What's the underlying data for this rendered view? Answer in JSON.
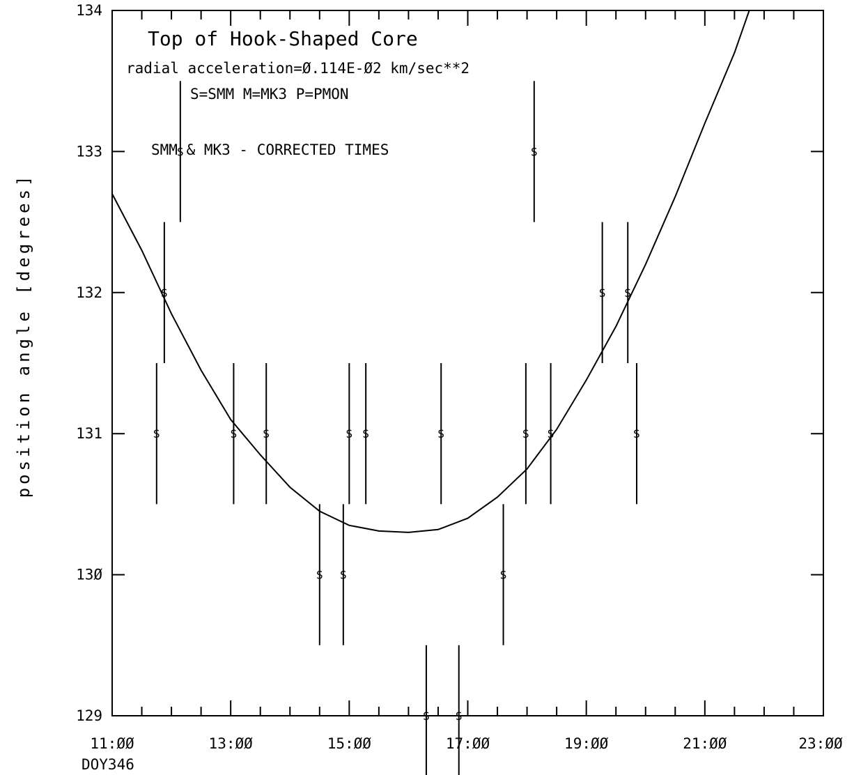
{
  "chart_data": {
    "type": "scatter",
    "title": "Top of Hook-Shaped Core",
    "annotations": [
      "radial acceleration=Ø.114E-Ø2  km/sec**2",
      "S=SMM  M=MK3  P=PMON",
      "SMM & MK3 - CORRECTED TIMES"
    ],
    "xlabel_sub": "DOY346",
    "ylabel": "position angle [degrees]",
    "x_unit": "hour of day",
    "xlim": [
      11.0,
      23.0
    ],
    "ylim": [
      129,
      134
    ],
    "x_ticks": [
      {
        "v": 11,
        "label": "11:ØØ"
      },
      {
        "v": 13,
        "label": "13:ØØ"
      },
      {
        "v": 15,
        "label": "15:ØØ"
      },
      {
        "v": 17,
        "label": "17:ØØ"
      },
      {
        "v": 19,
        "label": "19:ØØ"
      },
      {
        "v": 21,
        "label": "21:ØØ"
      },
      {
        "v": 23,
        "label": "23:ØØ"
      }
    ],
    "y_ticks": [
      {
        "v": 129,
        "label": "129"
      },
      {
        "v": 130,
        "label": "13Ø"
      },
      {
        "v": 131,
        "label": "131"
      },
      {
        "v": 132,
        "label": "132"
      },
      {
        "v": 133,
        "label": "133"
      },
      {
        "v": 134,
        "label": "134"
      }
    ],
    "grid": false,
    "series": [
      {
        "symbol": "S",
        "points": [
          {
            "x": 11.75,
            "y": 131,
            "err": 0.5
          },
          {
            "x": 11.88,
            "y": 132,
            "err": 0.5
          },
          {
            "x": 12.15,
            "y": 133,
            "err": 0.5
          },
          {
            "x": 13.05,
            "y": 131,
            "err": 0.5
          },
          {
            "x": 13.6,
            "y": 131,
            "err": 0.5
          },
          {
            "x": 14.5,
            "y": 130,
            "err": 0.5
          },
          {
            "x": 14.9,
            "y": 130,
            "err": 0.5
          },
          {
            "x": 15.0,
            "y": 131,
            "err": 0.5
          },
          {
            "x": 15.28,
            "y": 131,
            "err": 0.5
          },
          {
            "x": 16.3,
            "y": 129,
            "err": 0.5
          },
          {
            "x": 16.55,
            "y": 131,
            "err": 0.5
          },
          {
            "x": 16.85,
            "y": 129,
            "err": 0.5
          },
          {
            "x": 17.6,
            "y": 130,
            "err": 0.5
          },
          {
            "x": 17.98,
            "y": 131,
            "err": 0.5
          },
          {
            "x": 18.12,
            "y": 133,
            "err": 0.5
          },
          {
            "x": 18.4,
            "y": 131,
            "err": 0.5
          },
          {
            "x": 19.27,
            "y": 132,
            "err": 0.5
          },
          {
            "x": 19.7,
            "y": 132,
            "err": 0.5
          },
          {
            "x": 19.85,
            "y": 131,
            "err": 0.5
          }
        ]
      }
    ],
    "fit_curve": {
      "x": [
        11.0,
        11.5,
        12.0,
        12.5,
        13.0,
        13.5,
        14.0,
        14.5,
        15.0,
        15.5,
        16.0,
        16.5,
        17.0,
        17.5,
        18.0,
        18.5,
        19.0,
        19.5,
        20.0,
        20.5,
        21.0,
        21.5,
        21.75
      ],
      "y": [
        132.7,
        132.3,
        131.85,
        131.45,
        131.1,
        130.85,
        130.62,
        130.45,
        130.35,
        130.31,
        130.3,
        130.32,
        130.4,
        130.55,
        130.75,
        131.03,
        131.38,
        131.76,
        132.2,
        132.68,
        133.2,
        133.7,
        134.0
      ]
    }
  }
}
